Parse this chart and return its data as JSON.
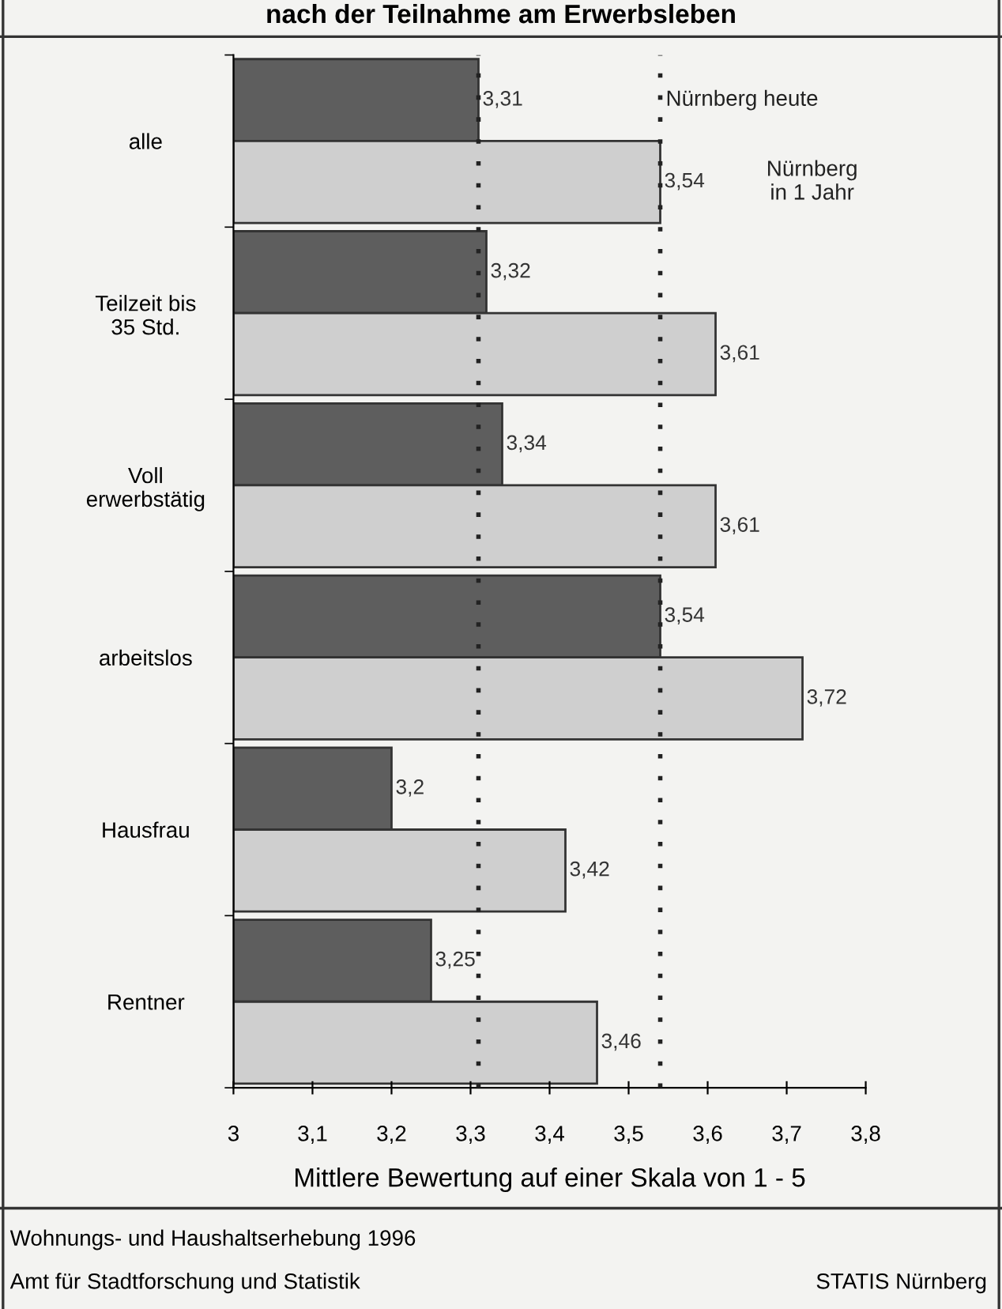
{
  "chart_data": {
    "type": "bar",
    "orientation": "horizontal",
    "title": "nach der Teilnahme am Erwerbsleben",
    "xlabel": "Mittlere Bewertung auf einer Skala von 1 - 5",
    "categories": [
      "alle",
      "Teilzeit bis\n35 Std.",
      "Voll\nerwerbstätig",
      "arbeitslos",
      "Hausfrau",
      "Rentner"
    ],
    "series": [
      {
        "name": "Nürnberg heute",
        "color": "#5e5e5e",
        "values": [
          3.31,
          3.32,
          3.34,
          3.54,
          3.2,
          3.25
        ],
        "value_labels": [
          "3,31",
          "3,32",
          "3,34",
          "3,54",
          "3,2",
          "3,25"
        ]
      },
      {
        "name": "Nürnberg\nin 1 Jahr",
        "color": "#cfcfcf",
        "values": [
          3.54,
          3.61,
          3.61,
          3.72,
          3.42,
          3.46
        ],
        "value_labels": [
          "3,54",
          "3,61",
          "3,61",
          "3,72",
          "3,42",
          "3,46"
        ]
      }
    ],
    "xlim": [
      3,
      3.8
    ],
    "xticks": [
      {
        "value": 3,
        "label": "3"
      },
      {
        "value": 3.1,
        "label": "3,1"
      },
      {
        "value": 3.2,
        "label": "3,2"
      },
      {
        "value": 3.3,
        "label": "3,3"
      },
      {
        "value": 3.4,
        "label": "3,4"
      },
      {
        "value": 3.5,
        "label": "3,5"
      },
      {
        "value": 3.6,
        "label": "3,6"
      },
      {
        "value": 3.7,
        "label": "3,7"
      },
      {
        "value": 3.8,
        "label": "3,8"
      }
    ],
    "ref_lines": [
      {
        "axis": "x",
        "value": 3.31,
        "line_style": "dotted",
        "color": "#222222"
      },
      {
        "axis": "x",
        "value": 3.54,
        "line_style": "dotted",
        "color": "#222222"
      }
    ],
    "annotations": [
      "Wohnungs- und Haushaltserhebung 1996",
      "Amt für Stadtforschung und Statistik",
      "STATIS Nürnberg"
    ],
    "grid": false,
    "legend": false
  }
}
